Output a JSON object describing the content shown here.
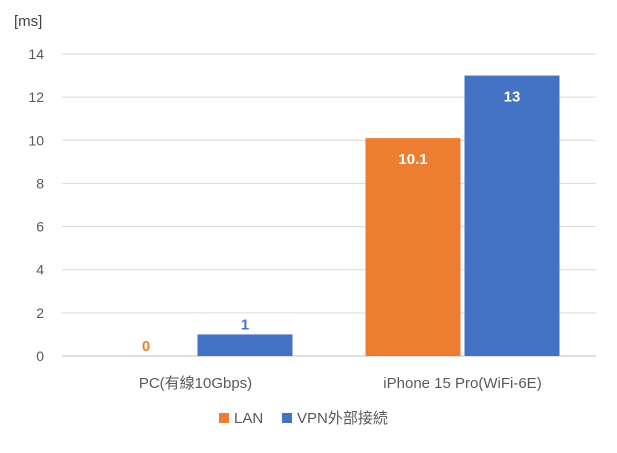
{
  "chart_data": {
    "type": "bar",
    "ylabel": "[ms]",
    "categories": [
      "PC(有線10Gbps)",
      "iPhone 15 Pro(WiFi-6E)"
    ],
    "series": [
      {
        "name": "LAN",
        "values": [
          0,
          10.1
        ],
        "labels": [
          "0",
          "10.1"
        ],
        "color": "#ED7D31"
      },
      {
        "name": "VPN外部接続",
        "values": [
          1,
          13
        ],
        "labels": [
          "1",
          "13"
        ],
        "color": "#4472C4"
      }
    ],
    "ylim": [
      0,
      14
    ],
    "yticks": [
      "0",
      "2",
      "4",
      "6",
      "8",
      "10",
      "12",
      "14"
    ],
    "grid": true,
    "legend": "bottom",
    "colors": {
      "grid": "#D9D9D9",
      "axis": "#BFBFBF",
      "text": "#595959"
    }
  }
}
